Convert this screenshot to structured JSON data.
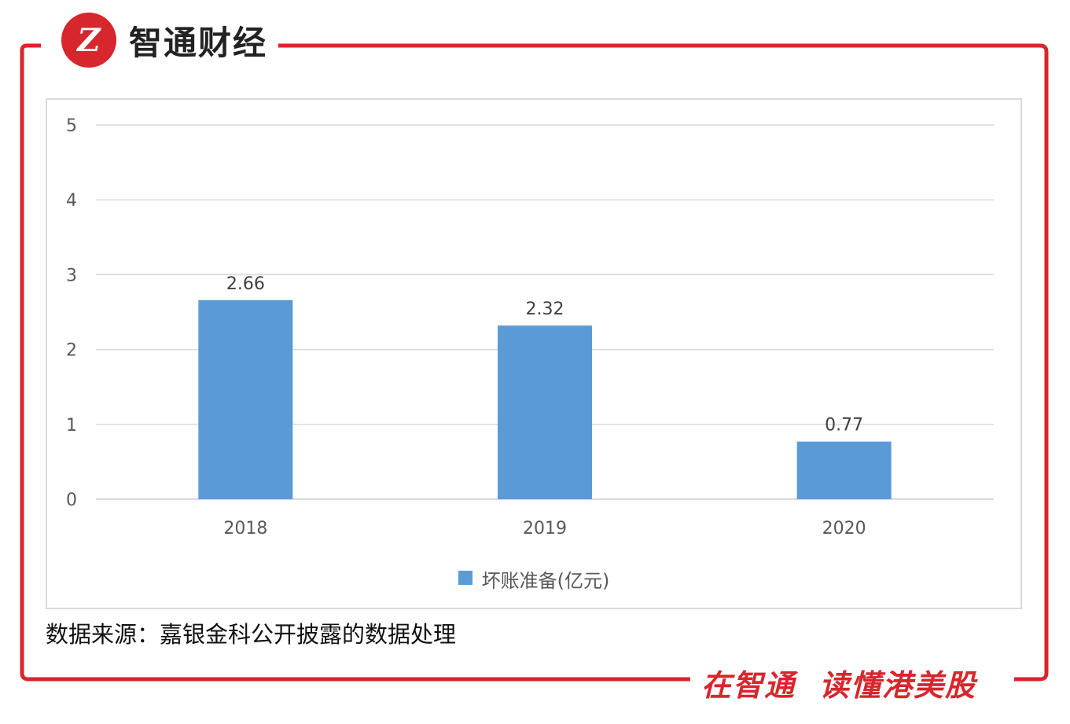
{
  "brand": {
    "logo_glyph": "Z",
    "name": "智通财经"
  },
  "slogan": {
    "part1": "在智通",
    "part2": "读懂港美股"
  },
  "source_note": "数据来源：嘉银金科公开披露的数据处理",
  "colors": {
    "brand_red": "#d7262d",
    "bar": "#5b9bd5",
    "grid": "#d9d9d9",
    "axis_text": "#595959"
  },
  "chart_data": {
    "type": "bar",
    "categories": [
      "2018",
      "2019",
      "2020"
    ],
    "series": [
      {
        "name": "坏账准备(亿元)",
        "values": [
          2.66,
          2.32,
          0.77
        ]
      }
    ],
    "data_labels": [
      "2.66",
      "2.32",
      "0.77"
    ],
    "y_ticks": [
      "0",
      "1",
      "2",
      "3",
      "4",
      "5"
    ],
    "ylim": [
      0,
      5
    ],
    "grid": true,
    "legend": "bottom-center"
  }
}
